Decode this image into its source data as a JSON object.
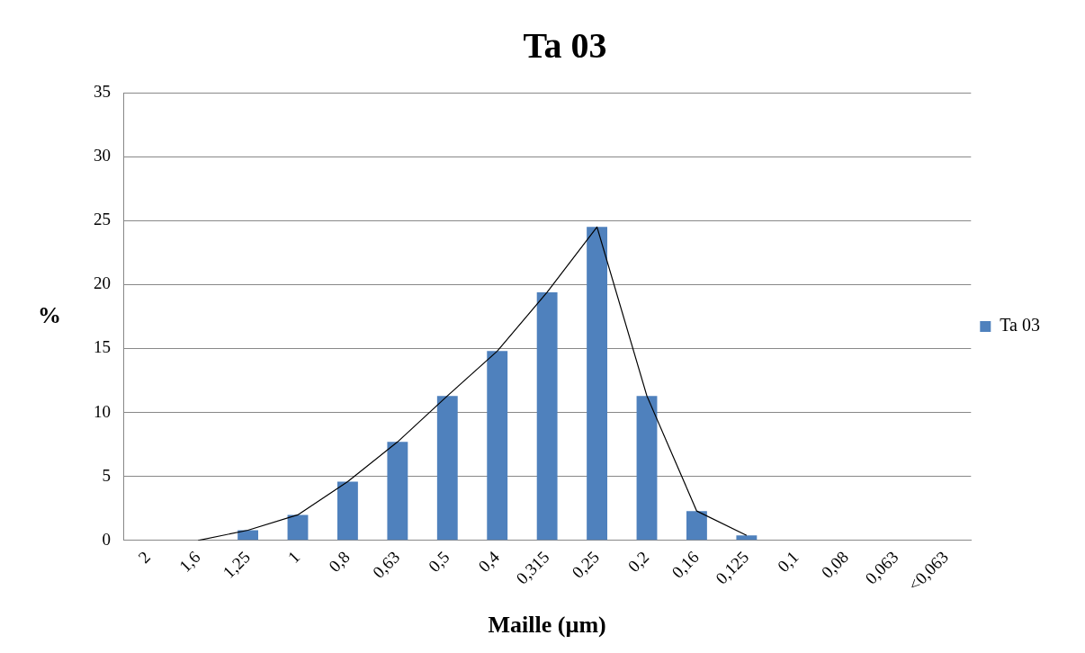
{
  "chart_data": {
    "type": "bar",
    "title": "Ta 03",
    "xlabel": "Maille (µm)",
    "ylabel": "%",
    "categories": [
      "2",
      "1,6",
      "1,25",
      "1",
      "0,8",
      "0,63",
      "0,5",
      "0,4",
      "0,315",
      "0,25",
      "0,2",
      "0,16",
      "0,125",
      "0,1",
      "0,08",
      "0,063",
      "<0,063"
    ],
    "series": [
      {
        "name": "Ta 03",
        "color": "#4f81bd",
        "values": [
          0,
          0,
          0.8,
          2.0,
          4.6,
          7.7,
          11.3,
          14.8,
          19.4,
          24.5,
          11.3,
          2.3,
          0.4,
          0,
          0,
          0,
          0
        ]
      },
      {
        "type": "line",
        "color": "#000000",
        "values": [
          null,
          0,
          0.8,
          2.0,
          4.6,
          7.7,
          11.3,
          14.8,
          19.4,
          24.5,
          11.3,
          2.3,
          0.4,
          null,
          null,
          null,
          null
        ]
      }
    ],
    "ylim": [
      0,
      35
    ],
    "yticks": [
      0,
      5,
      10,
      15,
      20,
      25,
      30,
      35
    ],
    "grid": "y",
    "legend": "right",
    "marker": "none"
  }
}
